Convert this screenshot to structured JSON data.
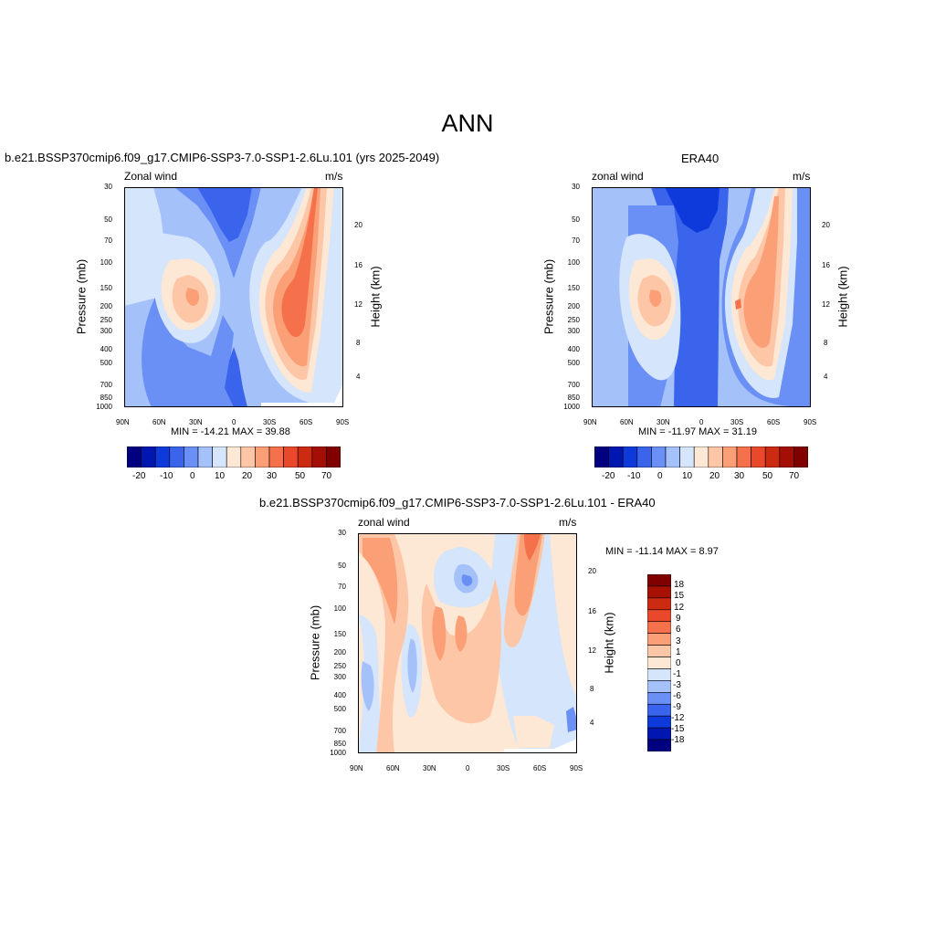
{
  "main_title": "ANN",
  "panels": {
    "left": {
      "title": "b.e21.BSSP370cmip6.f09_g17.CMIP6-SSP3-7.0-SSP1-2.6Lu.101 (yrs 2025-2049)",
      "varname": "Zonal wind",
      "units": "m/s",
      "minmax": "MIN = -14.21  MAX =  39.88"
    },
    "right": {
      "title": "ERA40",
      "varname": "zonal wind",
      "units": "m/s",
      "minmax": "MIN = -11.97  MAX =  31.19"
    },
    "diff": {
      "title": "b.e21.BSSP370cmip6.f09_g17.CMIP6-SSP3-7.0-SSP1-2.6Lu.101 - ERA40",
      "varname": "zonal wind",
      "units": "m/s",
      "minmax": "MIN = -11.14  MAX =   8.97"
    }
  },
  "axes": {
    "x_ticks": [
      "90N",
      "60N",
      "30N",
      "0",
      "30S",
      "60S",
      "90S"
    ],
    "pressure_ticks": [
      "30",
      "50",
      "70",
      "100",
      "150",
      "200",
      "250",
      "300",
      "400",
      "500",
      "700",
      "850",
      "1000"
    ],
    "height_ticks": [
      "20",
      "16",
      "12",
      "8",
      "4"
    ],
    "ylabel": "Pressure (mb)",
    "y2label": "Height (km)"
  },
  "colorbars": {
    "main_labels": [
      "-20",
      "-10",
      "0",
      "10",
      "20",
      "30",
      "50",
      "70"
    ],
    "diff_labels": [
      "18",
      "15",
      "12",
      "9",
      "6",
      "3",
      "1",
      "0",
      "-1",
      "-3",
      "-6",
      "-9",
      "-12",
      "-15",
      "-18"
    ],
    "main_colors": [
      "#000080",
      "#0016b0",
      "#0f3adb",
      "#3a64ec",
      "#6a8ff5",
      "#a4c1fa",
      "#d5e5fc",
      "#fde7d5",
      "#fdc6a6",
      "#fb9f77",
      "#f5714b",
      "#e9482b",
      "#cd2a12",
      "#a30f05",
      "#800000"
    ],
    "diff_colors": [
      "#800000",
      "#a81004",
      "#cd2a12",
      "#e9482b",
      "#f5714b",
      "#fb9f77",
      "#fdc6a6",
      "#fde7d5",
      "#d5e5fc",
      "#a4c1fa",
      "#6a8ff5",
      "#3a64ec",
      "#0f3adb",
      "#0016b0",
      "#000080"
    ]
  },
  "chart_data": [
    {
      "type": "heatmap",
      "title": "b.e21.BSSP370cmip6.f09_g17.CMIP6-SSP3-7.0-SSP1-2.6Lu.101 (yrs 2025-2049)",
      "variable": "Zonal wind",
      "units": "m/s",
      "xlabel": "",
      "ylabel": "Pressure (mb)",
      "y2label": "Height (km)",
      "x": [
        "90N",
        "60N",
        "30N",
        "0",
        "30S",
        "60S",
        "90S"
      ],
      "y_pressure": [
        30,
        50,
        70,
        100,
        150,
        200,
        250,
        300,
        400,
        500,
        700,
        850,
        1000
      ],
      "y_scale": "log",
      "y_inverted": true,
      "min": -14.21,
      "max": 39.88,
      "levels": [
        -20,
        -15,
        -10,
        -5,
        0,
        5,
        10,
        15,
        20,
        25,
        30,
        40,
        50,
        60,
        70
      ],
      "features": [
        {
          "desc": "southern hemisphere jet core",
          "lat": "~45S",
          "pressure_mb": 200,
          "value": 39.88
        },
        {
          "desc": "northern hemisphere jet core",
          "lat": "~40N",
          "pressure_mb": 200,
          "value": 25
        },
        {
          "desc": "tropical easterlies",
          "lat": "0",
          "pressure_mb": 50,
          "value": -14.21
        }
      ]
    },
    {
      "type": "heatmap",
      "title": "ERA40",
      "variable": "zonal wind",
      "units": "m/s",
      "xlabel": "",
      "ylabel": "Pressure (mb)",
      "y2label": "Height (km)",
      "x": [
        "90N",
        "60N",
        "30N",
        "0",
        "30S",
        "60S",
        "90S"
      ],
      "y_pressure": [
        30,
        50,
        70,
        100,
        150,
        200,
        250,
        300,
        400,
        500,
        700,
        850,
        1000
      ],
      "y_scale": "log",
      "y_inverted": true,
      "min": -11.97,
      "max": 31.19,
      "levels": [
        -20,
        -15,
        -10,
        -5,
        0,
        5,
        10,
        15,
        20,
        25,
        30,
        40,
        50,
        60,
        70
      ],
      "features": [
        {
          "desc": "southern hemisphere jet core",
          "lat": "~40S",
          "pressure_mb": 200,
          "value": 31.19
        },
        {
          "desc": "northern hemisphere jet core",
          "lat": "~40N",
          "pressure_mb": 200,
          "value": 25
        },
        {
          "desc": "tropical easterlies",
          "lat": "0",
          "pressure_mb": 30,
          "value": -11.97
        }
      ]
    },
    {
      "type": "heatmap",
      "title": "b.e21.BSSP370cmip6.f09_g17.CMIP6-SSP3-7.0-SSP1-2.6Lu.101 - ERA40",
      "variable": "zonal wind",
      "units": "m/s",
      "xlabel": "",
      "ylabel": "Pressure (mb)",
      "y2label": "Height (km)",
      "x": [
        "90N",
        "60N",
        "30N",
        "0",
        "30S",
        "60S",
        "90S"
      ],
      "y_pressure": [
        30,
        50,
        70,
        100,
        150,
        200,
        250,
        300,
        400,
        500,
        700,
        850,
        1000
      ],
      "y_scale": "log",
      "y_inverted": true,
      "min": -11.14,
      "max": 8.97,
      "levels": [
        -18,
        -15,
        -12,
        -9,
        -6,
        -3,
        -1,
        0,
        1,
        3,
        6,
        9,
        12,
        15,
        18
      ],
      "features": [
        {
          "desc": "positive difference upper southern high latitudes",
          "lat": "~55S",
          "pressure_mb": 40,
          "value": 8.97
        },
        {
          "desc": "negative difference tropical stratosphere",
          "lat": "~0",
          "pressure_mb": 80,
          "value": -6
        }
      ]
    }
  ]
}
